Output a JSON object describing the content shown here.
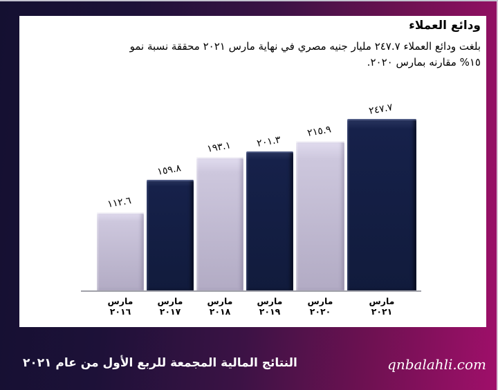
{
  "slide": {
    "title": "ودائع العملاء",
    "body_lines": [
      "بلغت ودائع العملاء ٢٤٧.٧ مليار جنيه مصري في نهاية مارس ٢٠٢١ محققة نسبة نمو",
      "١٥% مقارنه بمارس ٢٠٢٠."
    ]
  },
  "chart_data": {
    "type": "bar",
    "title": "ودائع العملاء",
    "categories": [
      "مارس ٢٠١٦",
      "مارس ٢٠١٧",
      "مارس ٢٠١٨",
      "مارس ٢٠١٩",
      "مارس ٢٠٢٠",
      "مارس ٢٠٢١"
    ],
    "category_lines": [
      {
        "month": "مارس",
        "year": "٢٠١٦"
      },
      {
        "month": "مارس",
        "year": "٢٠١٧"
      },
      {
        "month": "مارس",
        "year": "٢٠١٨"
      },
      {
        "month": "مارس",
        "year": "٢٠١٩"
      },
      {
        "month": "مارس",
        "year": "٢٠٢٠"
      },
      {
        "month": "مارس",
        "year": "٢٠٢١"
      }
    ],
    "values": [
      112.6,
      159.8,
      193.1,
      201.3,
      215.9,
      247.7
    ],
    "value_labels": [
      "١١٢.٦",
      "١٥٩.٨",
      "١٩٣.١",
      "٢٠١.٣",
      "٢١٥.٩",
      "٢٤٧.٧"
    ],
    "bar_color_pattern": [
      "lavender",
      "navy",
      "lavender",
      "navy",
      "lavender",
      "navy"
    ],
    "colors": {
      "navy": "#111b3c",
      "lavender": "#c6c0d7",
      "axis": "#9fa0a8"
    },
    "ylim": [
      0,
      250
    ],
    "grid": false,
    "legend": false,
    "xlabel": "",
    "ylabel": ""
  },
  "footer": {
    "left_text": "النتائج المالية المجمعة للربع الأول من عام ٢٠٢١",
    "website": "qnbalahli.com"
  },
  "theme": {
    "frame_gradient_start": "#141031",
    "frame_gradient_end": "#a00f6a",
    "panel_background": "#ffffff",
    "text_color": "#000000",
    "footer_text_color": "#ffffff"
  }
}
